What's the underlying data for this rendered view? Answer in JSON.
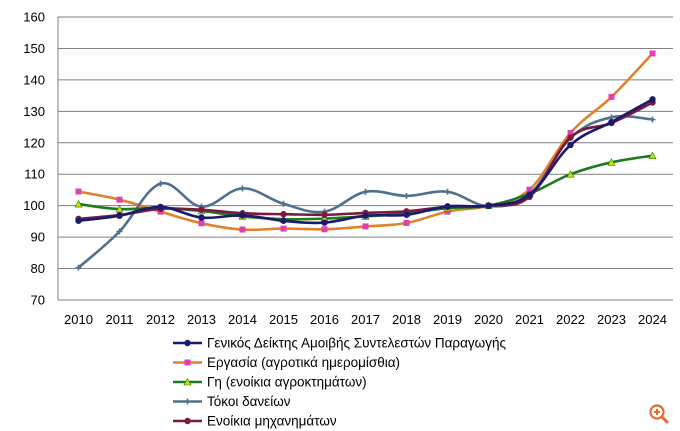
{
  "chart_data": {
    "type": "line",
    "title": "",
    "xlabel": "",
    "ylabel": "",
    "categories": [
      "2010",
      "2011",
      "2012",
      "2013",
      "2014",
      "2015",
      "2016",
      "2017",
      "2018",
      "2019",
      "2020",
      "2021",
      "2022",
      "2023",
      "2024"
    ],
    "ylim": [
      70,
      160
    ],
    "yticks": [
      70,
      80,
      90,
      100,
      110,
      120,
      130,
      140,
      150,
      160
    ],
    "grid": "horizontal",
    "legend": "bottom",
    "series": [
      {
        "name": "Γενικός Δείκτης  Αμοιβής Συντελεστών Παραγωγής",
        "color": "#1a1a6e",
        "marker": "circle",
        "values": [
          95.2,
          96.8,
          99.6,
          96.2,
          96.9,
          95.2,
          94.6,
          96.8,
          97.1,
          99.8,
          100,
          103.5,
          119.3,
          126.6,
          133.8
        ]
      },
      {
        "name": "Εργασία (αγροτικά ημερομίσθια)",
        "color": "#e0822b",
        "marker": "square",
        "values": [
          104.5,
          101.9,
          98.1,
          94.4,
          92.4,
          92.7,
          92.5,
          93.4,
          94.5,
          98.1,
          100,
          105.1,
          123.1,
          134.6,
          148.4
        ]
      },
      {
        "name": "Γη (ενοίκια αγροκτημάτων)",
        "color": "#1e7a1e",
        "marker": "triangle",
        "values": [
          100.5,
          98.9,
          99.3,
          98.3,
          96.6,
          95.7,
          95.9,
          96.6,
          97.6,
          99.2,
          100,
          103.8,
          110.0,
          113.8,
          115.9
        ]
      },
      {
        "name": "Τόκοι δανείων",
        "color": "#51708e",
        "marker": "plus",
        "values": [
          80.3,
          91.8,
          107.0,
          99.7,
          105.5,
          100.6,
          98.1,
          104.4,
          103.1,
          104.4,
          99.8,
          103.6,
          121.5,
          128.1,
          127.4
        ]
      },
      {
        "name": "Ενοίκια μηχανημάτων",
        "color": "#7b1a3c",
        "marker": "circle",
        "values": [
          95.8,
          97.0,
          99.0,
          98.7,
          97.6,
          97.3,
          97.1,
          97.7,
          98.2,
          99.6,
          100,
          102.8,
          121.7,
          126.3,
          132.8
        ]
      }
    ]
  },
  "zoom_icon": "zoom-in-icon",
  "colors": {
    "grid": "#808080",
    "axis": "#808080",
    "zoom_icon": "#e8692e"
  }
}
